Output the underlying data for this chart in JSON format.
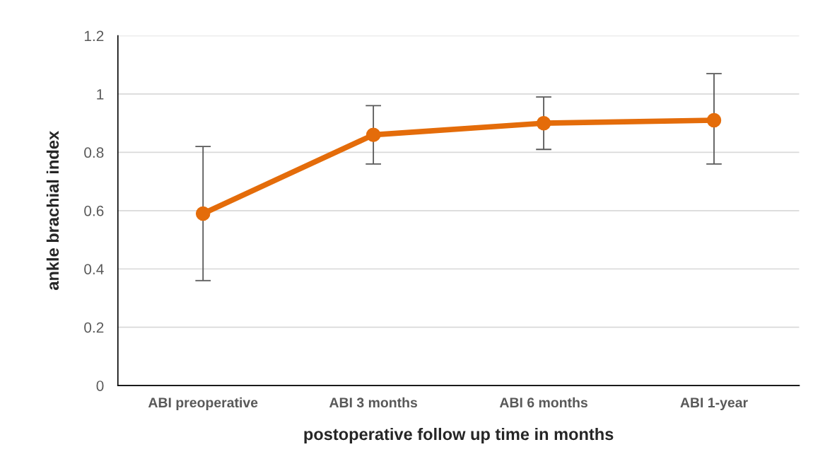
{
  "chart_data": {
    "type": "line",
    "xlabel": "postoperative follow up time in months",
    "ylabel": "ankle brachial index",
    "categories": [
      "ABI preoperative",
      "ABI 3 months",
      "ABI 6 months",
      "ABI 1-year"
    ],
    "series": [
      {
        "color": "#e46c0a",
        "values": [
          0.59,
          0.86,
          0.9,
          0.91
        ],
        "errors": [
          [
            0.36,
            0.82
          ],
          [
            0.76,
            0.96
          ],
          [
            0.81,
            0.99
          ],
          [
            0.76,
            1.07
          ]
        ]
      }
    ],
    "ylim": [
      0,
      1.2
    ],
    "yticks": [
      0,
      0.2,
      0.4,
      0.6,
      0.8,
      1,
      1.2
    ],
    "grid": "y",
    "marker": "circle",
    "line_style": "solid"
  }
}
